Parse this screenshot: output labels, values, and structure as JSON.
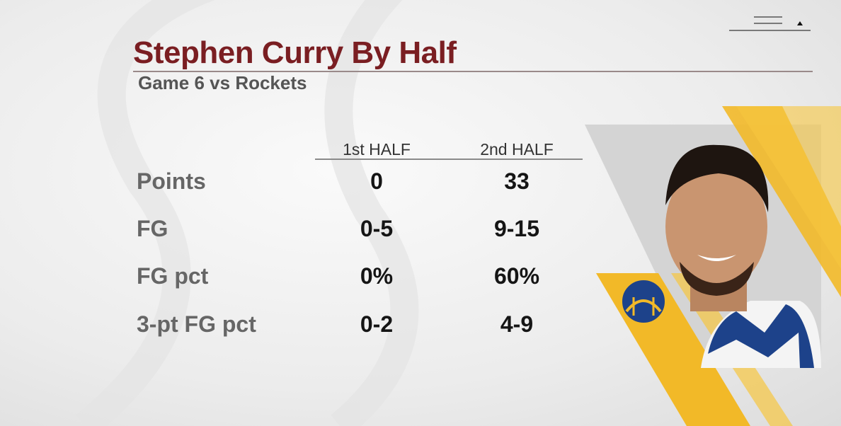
{
  "header": {
    "title": "Stephen Curry By Half",
    "subtitle": "Game 6 vs Rockets"
  },
  "table": {
    "columns": [
      "1st HALF",
      "2nd HALF"
    ],
    "rows": [
      [
        "Points",
        "0",
        "33"
      ],
      [
        "FG",
        "0-5",
        "9-15"
      ],
      [
        "FG pct",
        "0%",
        "60%"
      ],
      [
        "3-pt FG pct",
        "0-2",
        "4-9"
      ]
    ]
  }
}
